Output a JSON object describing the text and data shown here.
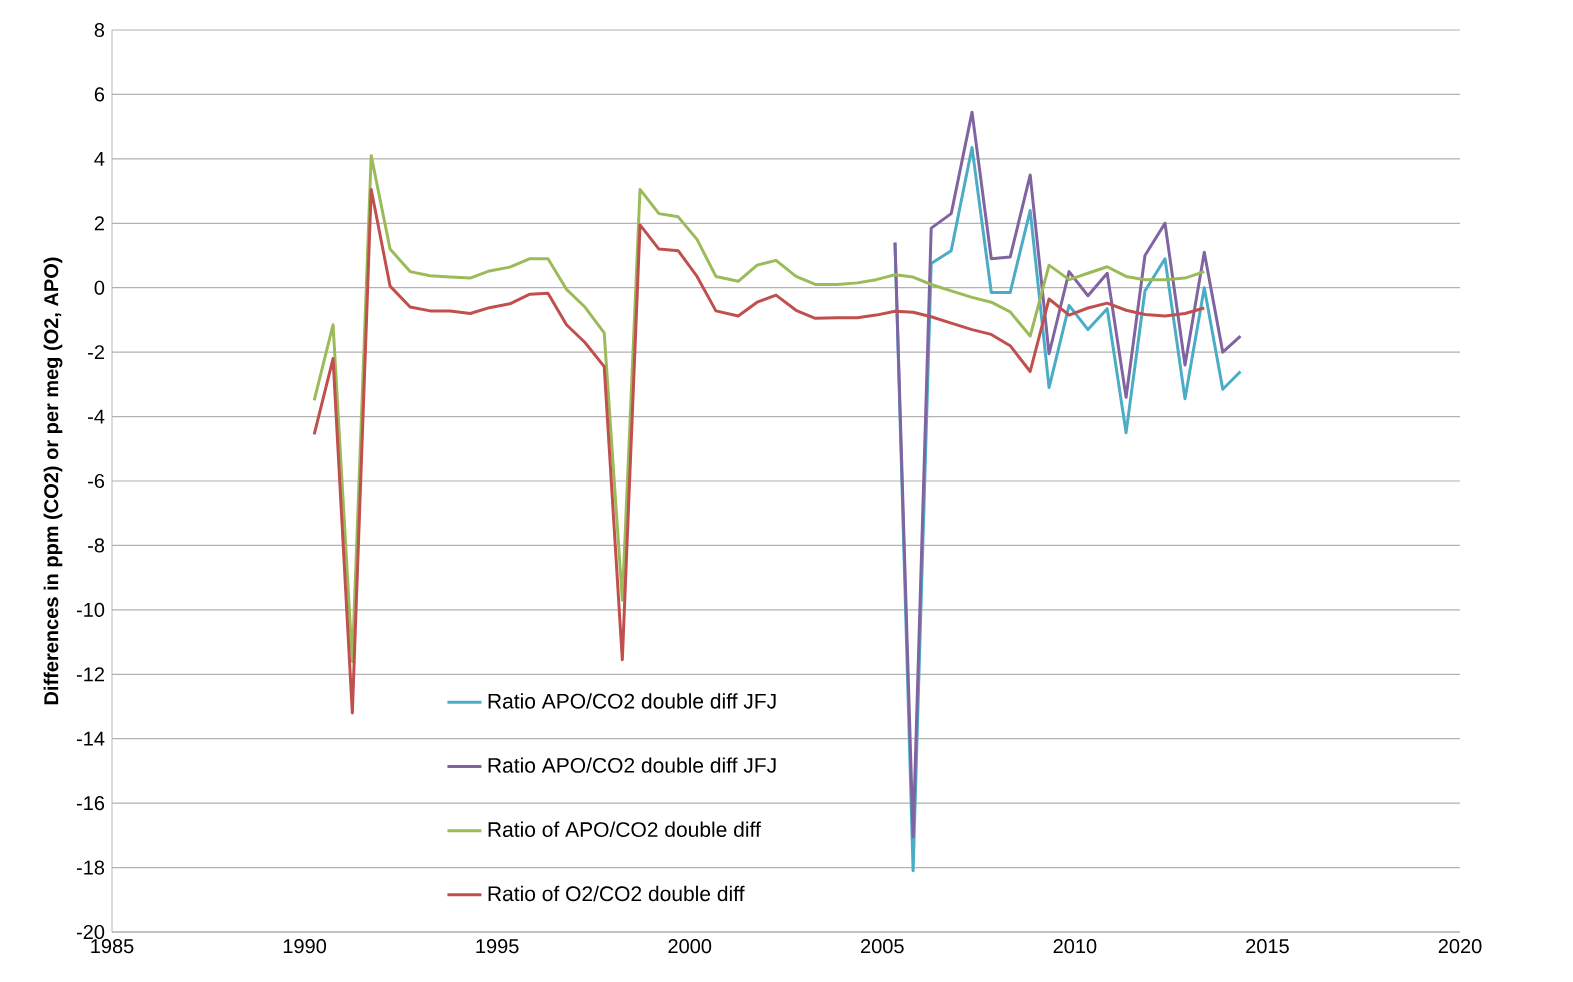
{
  "chart_data": {
    "type": "line",
    "ylabel": "Differences in  ppm (CO2) or per meg (O2, APO)",
    "xlim": [
      1985,
      2020
    ],
    "xticks": [
      1985,
      1990,
      1995,
      2000,
      2005,
      2010,
      2015,
      2020
    ],
    "ylim": [
      -20,
      8
    ],
    "yticks": [
      -20,
      -18,
      -16,
      -14,
      -12,
      -10,
      -8,
      -6,
      -4,
      -2,
      0,
      2,
      4,
      6,
      8
    ],
    "grid": "y",
    "legend": "bottom",
    "line_style": "solid",
    "marker": "none",
    "series": [
      {
        "name": "Ratio APO/CO2 double diff JFJ",
        "color": "#4bacc6",
        "x": [
          2005.33,
          2005.8,
          2006.27,
          2006.79,
          2007.33,
          2007.83,
          2008.32,
          2008.84,
          2009.33,
          2009.85,
          2010.34,
          2010.84,
          2011.33,
          2011.82,
          2012.34,
          2012.86,
          2013.36,
          2013.84,
          2014.3
        ],
        "values": [
          1.4,
          -18.1,
          0.75,
          1.15,
          4.35,
          -0.15,
          -0.15,
          2.4,
          -3.1,
          -0.55,
          -1.3,
          -0.65,
          -4.5,
          -0.1,
          0.9,
          -3.45,
          0.0,
          -3.15,
          -2.6
        ]
      },
      {
        "name": "Ratio APO/CO2 double diff JFJ",
        "color": "#8064a2",
        "x": [
          2005.33,
          2005.8,
          2006.27,
          2006.79,
          2007.33,
          2007.83,
          2008.32,
          2008.84,
          2009.33,
          2009.85,
          2010.34,
          2010.84,
          2011.33,
          2011.82,
          2012.34,
          2012.86,
          2013.36,
          2013.84,
          2014.3
        ],
        "values": [
          1.4,
          -17.05,
          1.85,
          2.3,
          5.45,
          0.9,
          0.95,
          3.5,
          -2.05,
          0.5,
          -0.25,
          0.45,
          -3.4,
          1.0,
          2.0,
          -2.4,
          1.1,
          -2.0,
          -1.5
        ]
      },
      {
        "name": "Ratio of APO/CO2 double diff",
        "color": "#9bbb59",
        "x": [
          1990.25,
          1990.74,
          1991.24,
          1991.73,
          1992.22,
          1992.74,
          1993.26,
          1993.78,
          1994.3,
          1994.8,
          1995.33,
          1995.85,
          1996.32,
          1996.8,
          1997.28,
          1997.78,
          1998.25,
          1998.71,
          1999.2,
          1999.7,
          2000.19,
          2000.68,
          2001.26,
          2001.75,
          2002.24,
          2002.76,
          2003.26,
          2003.83,
          2004.35,
          2004.84,
          2005.33,
          2005.8,
          2006.27,
          2006.79,
          2007.33,
          2007.83,
          2008.32,
          2008.84,
          2009.33,
          2009.85,
          2010.34,
          2010.84,
          2011.33,
          2011.82,
          2012.34,
          2012.86,
          2013.36
        ],
        "values": [
          -3.5,
          -1.15,
          -11.6,
          4.1,
          1.2,
          0.5,
          0.37,
          0.33,
          0.3,
          0.52,
          0.64,
          0.9,
          0.9,
          -0.05,
          -0.6,
          -1.4,
          -9.7,
          3.05,
          2.3,
          2.2,
          1.5,
          0.35,
          0.2,
          0.7,
          0.85,
          0.35,
          0.1,
          0.1,
          0.15,
          0.25,
          0.4,
          0.33,
          0.1,
          -0.1,
          -0.3,
          -0.45,
          -0.75,
          -1.5,
          0.7,
          0.25,
          0.45,
          0.65,
          0.35,
          0.25,
          0.25,
          0.3,
          0.5
        ]
      },
      {
        "name": "Ratio of O2/CO2 double diff",
        "color": "#c0504d",
        "x": [
          1990.25,
          1990.74,
          1991.24,
          1991.73,
          1992.22,
          1992.74,
          1993.26,
          1993.78,
          1994.3,
          1994.8,
          1995.33,
          1995.85,
          1996.32,
          1996.8,
          1997.28,
          1997.78,
          1998.25,
          1998.71,
          1999.2,
          1999.7,
          2000.19,
          2000.68,
          2001.26,
          2001.75,
          2002.24,
          2002.76,
          2003.26,
          2003.83,
          2004.35,
          2004.84,
          2005.33,
          2005.8,
          2006.27,
          2006.79,
          2007.33,
          2007.83,
          2008.32,
          2008.84,
          2009.33,
          2009.85,
          2010.34,
          2010.84,
          2011.33,
          2011.82,
          2012.34,
          2012.86,
          2013.36
        ],
        "values": [
          -4.55,
          -2.2,
          -13.2,
          3.05,
          0.05,
          -0.6,
          -0.72,
          -0.72,
          -0.8,
          -0.62,
          -0.5,
          -0.2,
          -0.17,
          -1.15,
          -1.7,
          -2.45,
          -11.55,
          1.95,
          1.2,
          1.15,
          0.35,
          -0.72,
          -0.88,
          -0.45,
          -0.23,
          -0.7,
          -0.95,
          -0.93,
          -0.93,
          -0.85,
          -0.73,
          -0.76,
          -0.9,
          -1.1,
          -1.3,
          -1.45,
          -1.8,
          -2.6,
          -0.35,
          -0.85,
          -0.63,
          -0.48,
          -0.7,
          -0.83,
          -0.88,
          -0.8,
          -0.63
        ]
      }
    ]
  }
}
